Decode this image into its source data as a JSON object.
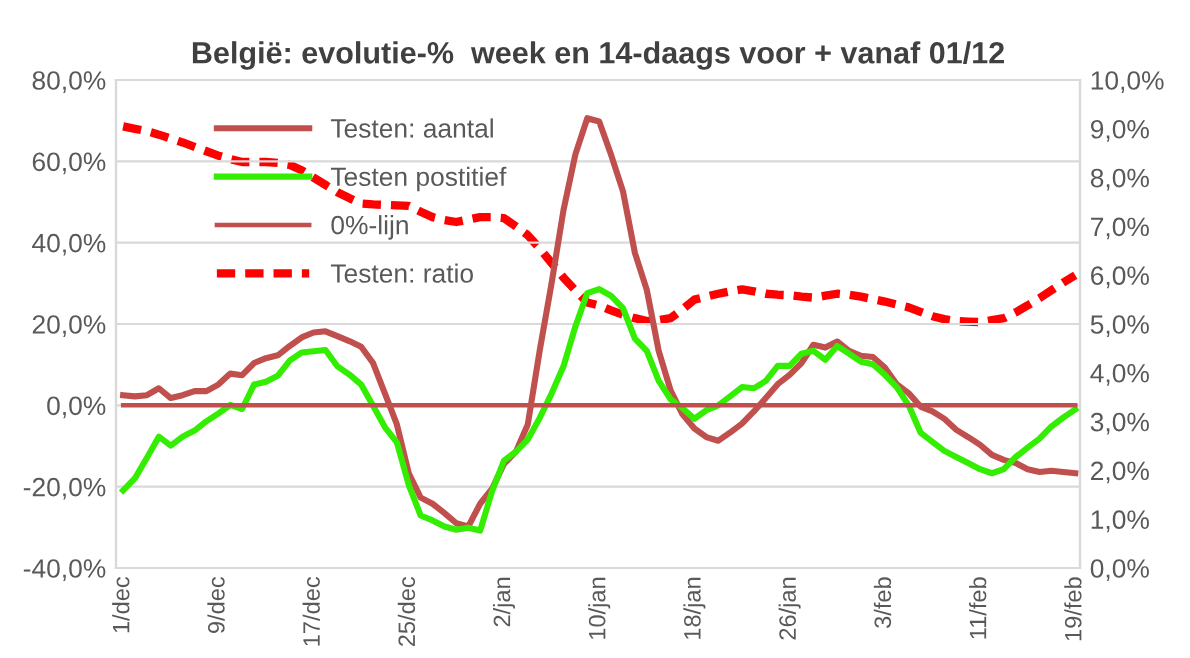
{
  "chart_data": {
    "type": "line",
    "title": "België: evolutie-%  week en 14-daags voor + vanaf 01/12",
    "categories": [
      "1/dec",
      null,
      null,
      null,
      null,
      null,
      null,
      null,
      "9/dec",
      null,
      null,
      null,
      null,
      null,
      null,
      null,
      "17/dec",
      null,
      null,
      null,
      null,
      null,
      null,
      null,
      "25/dec",
      null,
      null,
      null,
      null,
      null,
      null,
      null,
      "2/jan",
      null,
      null,
      null,
      null,
      null,
      null,
      null,
      "10/jan",
      null,
      null,
      null,
      null,
      null,
      null,
      null,
      "18/jan",
      null,
      null,
      null,
      null,
      null,
      null,
      null,
      "26/jan",
      null,
      null,
      null,
      null,
      null,
      null,
      null,
      "3/feb",
      null,
      null,
      null,
      null,
      null,
      null,
      null,
      "11/feb",
      null,
      null,
      null,
      null,
      null,
      null,
      null,
      "19/feb"
    ],
    "series": [
      {
        "name": "Testen: aantal",
        "color": "#c0504d",
        "line_style": "solid",
        "values": [
          2.5,
          2.2,
          2.5,
          4.2,
          1.8,
          2.5,
          3.5,
          3.5,
          5.1,
          7.8,
          7.4,
          10.4,
          11.6,
          12.3,
          14.6,
          16.7,
          17.9,
          18.2,
          17.0,
          15.8,
          14.4,
          10.4,
          2.9,
          -4.7,
          -16.7,
          -22.7,
          -24.2,
          -26.5,
          -29.0,
          -29.8,
          -24.2,
          -20.5,
          -14.4,
          -11.4,
          -4.7,
          13.4,
          30.0,
          48.0,
          61.7,
          70.6,
          69.8,
          61.6,
          52.6,
          37.5,
          28.4,
          13.4,
          3.7,
          -2.2,
          -5.7,
          -7.8,
          -8.7,
          -6.7,
          -4.5,
          -1.5,
          1.8,
          5.2,
          7.5,
          10.4,
          14.9,
          14.2,
          15.7,
          13.4,
          12.2,
          11.9,
          9.3,
          5.2,
          3.0,
          -0.3,
          -1.5,
          -3.3,
          -6.0,
          -7.8,
          -9.7,
          -12.2,
          -13.4,
          -14.2,
          -15.7,
          -16.4,
          -16.1,
          -16.4,
          -16.7
        ]
      },
      {
        "name": "Testen postitief",
        "color": "#33ee00",
        "line_style": "solid",
        "values": [
          -20.9,
          -17.9,
          -12.9,
          -7.7,
          -9.9,
          -7.7,
          -6.2,
          -3.9,
          -2.0,
          0.1,
          -0.9,
          5.1,
          5.8,
          7.3,
          11.0,
          13.0,
          13.3,
          13.6,
          9.6,
          7.6,
          5.1,
          -0.1,
          -5.4,
          -9.1,
          -19.6,
          -27.1,
          -28.3,
          -29.8,
          -30.6,
          -30.1,
          -30.8,
          -21.1,
          -13.6,
          -11.4,
          -8.4,
          -3.1,
          2.9,
          9.6,
          19.4,
          27.6,
          28.6,
          26.9,
          23.9,
          16.4,
          13.4,
          6.0,
          1.5,
          -0.7,
          -3.3,
          -1.2,
          0.0,
          2.2,
          4.5,
          4.2,
          6.0,
          9.7,
          9.7,
          12.7,
          13.4,
          11.2,
          14.6,
          12.7,
          10.7,
          10.1,
          7.5,
          4.5,
          0.0,
          -6.7,
          -9.0,
          -11.2,
          -12.7,
          -14.2,
          -15.7,
          -16.7,
          -15.7,
          -12.7,
          -10.4,
          -8.2,
          -5.2,
          -3.0,
          -1.0
        ]
      },
      {
        "name": "0%-lijn",
        "color": "#c0504d",
        "line_style": "solid",
        "values": [
          0,
          0,
          0,
          0,
          0,
          0,
          0,
          0,
          0,
          0,
          0,
          0,
          0,
          0,
          0,
          0,
          0,
          0,
          0,
          0,
          0,
          0,
          0,
          0,
          0,
          0,
          0,
          0,
          0,
          0,
          0,
          0,
          0,
          0,
          0,
          0,
          0,
          0,
          0,
          0,
          0,
          0,
          0,
          0,
          0,
          0,
          0,
          0,
          0,
          0,
          0,
          0,
          0,
          0,
          0,
          0,
          0,
          0,
          0,
          0,
          0,
          0,
          0,
          0,
          0,
          0,
          0,
          0,
          0,
          0,
          0,
          0,
          0,
          0,
          0,
          0,
          0,
          0,
          0,
          0,
          0
        ]
      },
      {
        "name": "Testen: ratio",
        "color": "#ff0000",
        "line_style": "dashed",
        "axis": "y2",
        "values": [
          9.05,
          9.0,
          8.95,
          8.88,
          8.8,
          8.72,
          8.63,
          8.54,
          8.45,
          8.38,
          8.32,
          8.32,
          8.32,
          8.3,
          8.26,
          8.15,
          8.0,
          7.85,
          7.7,
          7.58,
          7.47,
          7.45,
          7.44,
          7.43,
          7.42,
          7.3,
          7.19,
          7.13,
          7.09,
          7.14,
          7.19,
          7.19,
          7.17,
          7.0,
          6.82,
          6.55,
          6.25,
          5.95,
          5.69,
          5.44,
          5.38,
          5.28,
          5.19,
          5.12,
          5.06,
          5.08,
          5.12,
          5.3,
          5.5,
          5.56,
          5.62,
          5.67,
          5.71,
          5.67,
          5.62,
          5.6,
          5.59,
          5.56,
          5.54,
          5.58,
          5.62,
          5.6,
          5.56,
          5.51,
          5.46,
          5.4,
          5.34,
          5.25,
          5.16,
          5.1,
          5.06,
          5.05,
          5.04,
          5.08,
          5.12,
          5.24,
          5.38,
          5.53,
          5.69,
          5.85,
          6.0
        ]
      }
    ],
    "ylim": [
      -40,
      80
    ],
    "yticks": [
      {
        "value": -40,
        "label": "-40,0%"
      },
      {
        "value": -20,
        "label": "-20,0%"
      },
      {
        "value": 0,
        "label": "0,0%"
      },
      {
        "value": 20,
        "label": "20,0%"
      },
      {
        "value": 40,
        "label": "40,0%"
      },
      {
        "value": 60,
        "label": "60,0%"
      },
      {
        "value": 80,
        "label": "80,0%"
      }
    ],
    "y2lim": [
      0,
      10
    ],
    "y2ticks": [
      {
        "value": 0,
        "label": "0,0%"
      },
      {
        "value": 1,
        "label": "1,0%"
      },
      {
        "value": 2,
        "label": "2,0%"
      },
      {
        "value": 3,
        "label": "3,0%"
      },
      {
        "value": 4,
        "label": "4,0%"
      },
      {
        "value": 5,
        "label": "5,0%"
      },
      {
        "value": 6,
        "label": "6,0%"
      },
      {
        "value": 7,
        "label": "7,0%"
      },
      {
        "value": 8,
        "label": "8,0%"
      },
      {
        "value": 9,
        "label": "9,0%"
      },
      {
        "value": 10,
        "label": "10,0%"
      }
    ],
    "grid": "y",
    "legend": "top left",
    "marker": "none"
  }
}
